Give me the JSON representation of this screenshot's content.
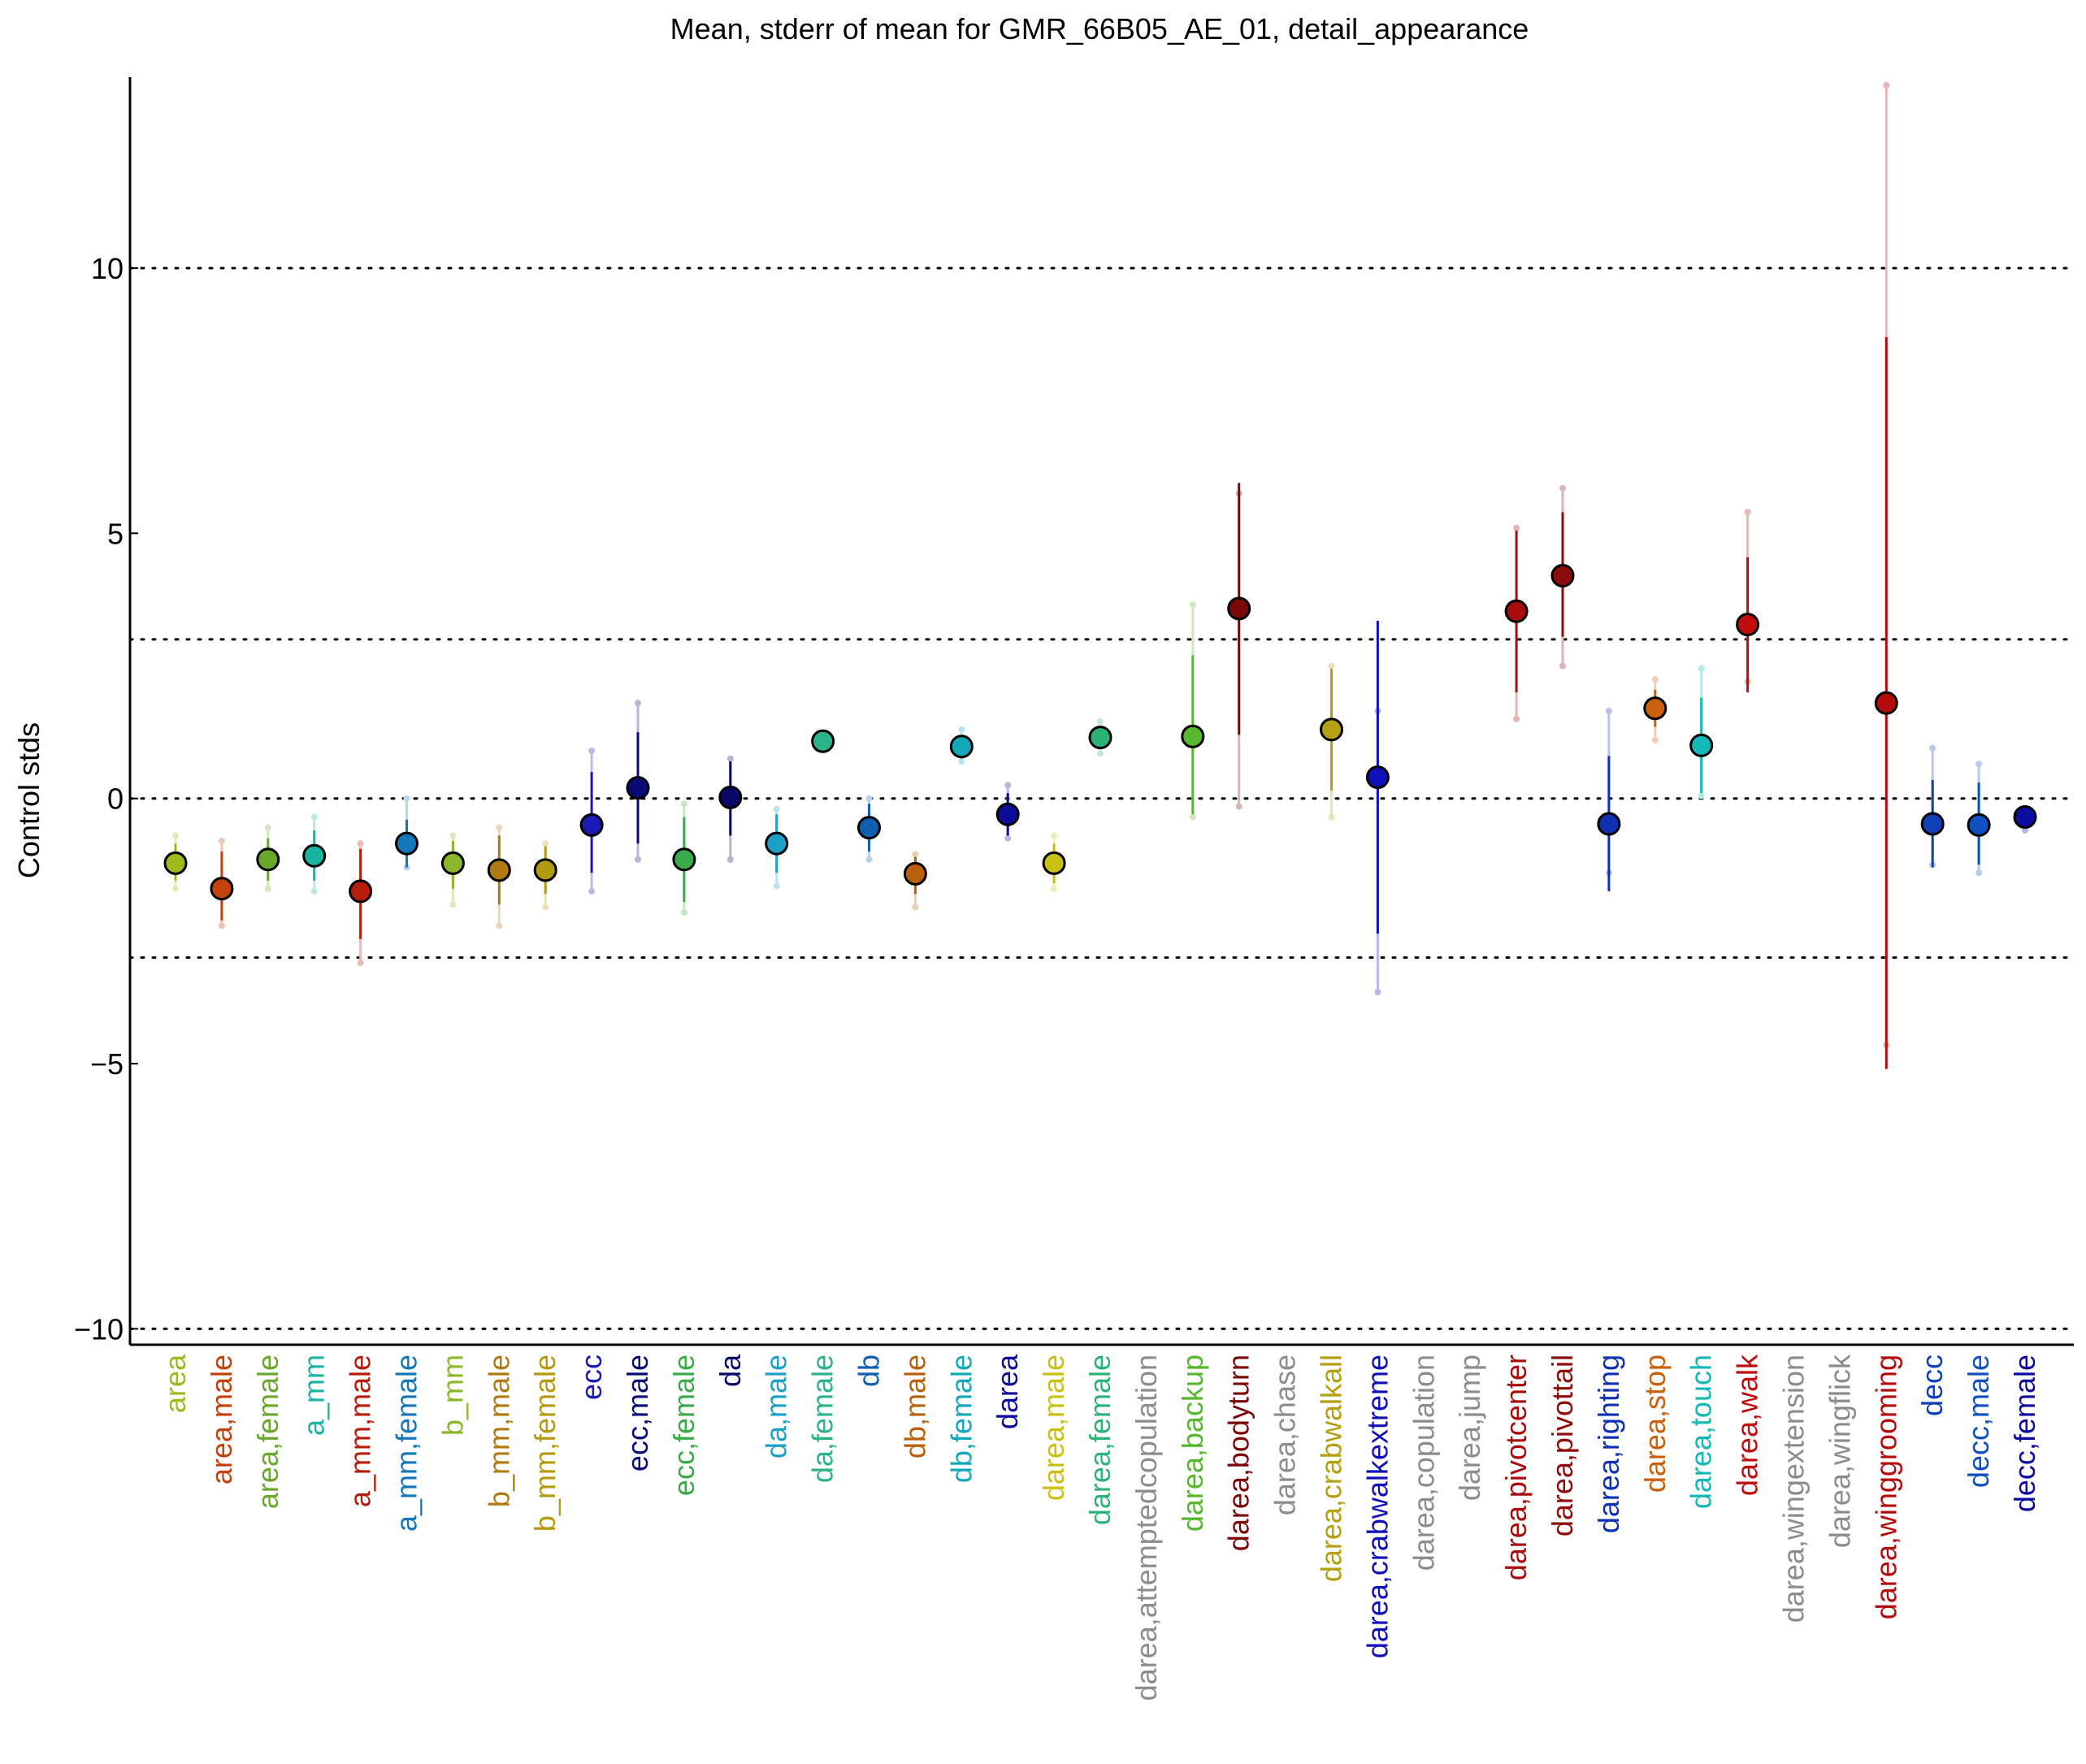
{
  "chart_data": {
    "type": "scatter",
    "title": "Mean, stderr of mean for GMR_66B05_AE_01, detail_appearance",
    "ylabel": "Control stds",
    "xlabel": "",
    "ylim": [
      -10.3,
      13.6
    ],
    "yticks": [
      -10,
      -5,
      0,
      5,
      10
    ],
    "ytick_labels": [
      "−10",
      "−5",
      "0",
      "5",
      "10"
    ],
    "reference_lines": [
      -10,
      -3,
      0,
      3,
      10
    ],
    "grid": false,
    "legend": "none",
    "points": [
      {
        "label": "area",
        "color": "#9dba1c",
        "mean": -1.22,
        "se_lo": -1.55,
        "se_hi": -0.85,
        "ext_lo": -1.7,
        "ext_hi": -0.7
      },
      {
        "label": "area,male",
        "color": "#c2410c",
        "mean": -1.7,
        "se_lo": -2.3,
        "se_hi": -1.0,
        "ext_lo": -2.4,
        "ext_hi": -0.8
      },
      {
        "label": "area,female",
        "color": "#6aa82c",
        "mean": -1.15,
        "se_lo": -1.55,
        "se_hi": -0.75,
        "ext_lo": -1.7,
        "ext_hi": -0.55
      },
      {
        "label": "a_mm",
        "color": "#19b5a0",
        "mean": -1.08,
        "se_lo": -1.55,
        "se_hi": -0.6,
        "ext_lo": -1.75,
        "ext_hi": -0.35
      },
      {
        "label": "a_mm,male",
        "color": "#b71c0c",
        "mean": -1.75,
        "se_lo": -2.65,
        "se_hi": -0.95,
        "ext_lo": -3.1,
        "ext_hi": -0.85
      },
      {
        "label": "a_mm,female",
        "color": "#1478b8",
        "mean": -0.85,
        "se_lo": -1.3,
        "se_hi": -0.4,
        "ext_lo": -1.3,
        "ext_hi": 0.0
      },
      {
        "label": "b_mm",
        "color": "#8ab82a",
        "mean": -1.22,
        "se_lo": -1.7,
        "se_hi": -0.8,
        "ext_lo": -2.0,
        "ext_hi": -0.7
      },
      {
        "label": "b_mm,male",
        "color": "#b07a10",
        "mean": -1.35,
        "se_lo": -2.0,
        "se_hi": -0.7,
        "ext_lo": -2.4,
        "ext_hi": -0.55
      },
      {
        "label": "b_mm,female",
        "color": "#b49a10",
        "mean": -1.35,
        "se_lo": -1.8,
        "se_hi": -0.9,
        "ext_lo": -2.05,
        "ext_hi": -0.85
      },
      {
        "label": "ecc",
        "color": "#1a1ab4",
        "mean": -0.5,
        "se_lo": -1.4,
        "se_hi": 0.5,
        "ext_lo": -1.75,
        "ext_hi": 0.9
      },
      {
        "label": "ecc,male",
        "color": "#0b0b78",
        "mean": 0.2,
        "se_lo": -0.85,
        "se_hi": 1.25,
        "ext_lo": -1.15,
        "ext_hi": 1.8
      },
      {
        "label": "ecc,female",
        "color": "#3aaa4a",
        "mean": -1.15,
        "se_lo": -1.95,
        "se_hi": -0.35,
        "ext_lo": -2.15,
        "ext_hi": -0.1
      },
      {
        "label": "da",
        "color": "#08086a",
        "mean": 0.02,
        "se_lo": -0.7,
        "se_hi": 0.7,
        "ext_lo": -1.15,
        "ext_hi": 0.75
      },
      {
        "label": "da,male",
        "color": "#1ca0c8",
        "mean": -0.85,
        "se_lo": -1.4,
        "se_hi": -0.3,
        "ext_lo": -1.65,
        "ext_hi": -0.2
      },
      {
        "label": "da,female",
        "color": "#2cb488",
        "mean": 1.08,
        "se_lo": 0.95,
        "se_hi": 1.2,
        "ext_lo": 0.95,
        "ext_hi": 1.2
      },
      {
        "label": "db",
        "color": "#1060b0",
        "mean": -0.55,
        "se_lo": -1.0,
        "se_hi": -0.1,
        "ext_lo": -1.15,
        "ext_hi": 0.0
      },
      {
        "label": "db,male",
        "color": "#b8600c",
        "mean": -1.42,
        "se_lo": -1.8,
        "se_hi": -1.1,
        "ext_lo": -2.05,
        "ext_hi": -1.05
      },
      {
        "label": "db,female",
        "color": "#14a8b8",
        "mean": 0.98,
        "se_lo": 0.75,
        "se_hi": 1.2,
        "ext_lo": 0.7,
        "ext_hi": 1.3
      },
      {
        "label": "darea",
        "color": "#0c0c98",
        "mean": -0.3,
        "se_lo": -0.7,
        "se_hi": 0.1,
        "ext_lo": -0.75,
        "ext_hi": 0.25
      },
      {
        "label": "darea,male",
        "color": "#c8c014",
        "mean": -1.22,
        "se_lo": -1.6,
        "se_hi": -0.85,
        "ext_lo": -1.7,
        "ext_hi": -0.7
      },
      {
        "label": "darea,female",
        "color": "#2cb478",
        "mean": 1.15,
        "se_lo": 0.95,
        "se_hi": 1.35,
        "ext_lo": 0.85,
        "ext_hi": 1.45
      },
      {
        "label": "darea,attemptedcopulation",
        "color": "#8c8c8c",
        "mean": null
      },
      {
        "label": "darea,backup",
        "color": "#56b82c",
        "mean": 1.17,
        "se_lo": -0.3,
        "se_hi": 2.7,
        "ext_lo": -0.35,
        "ext_hi": 3.65
      },
      {
        "label": "darea,bodyturn",
        "color": "#7a0808",
        "mean": 3.58,
        "se_lo": 1.2,
        "se_hi": 5.95,
        "ext_lo": -0.15,
        "ext_hi": 5.75
      },
      {
        "label": "darea,chase",
        "color": "#8c8c8c",
        "mean": null
      },
      {
        "label": "darea,crabwalkall",
        "color": "#b4a010",
        "mean": 1.3,
        "se_lo": 0.15,
        "se_hi": 2.45,
        "ext_lo": -0.35,
        "ext_hi": 2.5
      },
      {
        "label": "darea,crabwalkextreme",
        "color": "#1010b8",
        "mean": 0.4,
        "se_lo": -2.55,
        "se_hi": 3.35,
        "ext_lo": -3.65,
        "ext_hi": 1.65
      },
      {
        "label": "darea,copulation",
        "color": "#8c8c8c",
        "mean": null
      },
      {
        "label": "darea,jump",
        "color": "#8c8c8c",
        "mean": null
      },
      {
        "label": "darea,pivotcenter",
        "color": "#a80c0c",
        "mean": 3.53,
        "se_lo": 2.0,
        "se_hi": 5.05,
        "ext_lo": 1.5,
        "ext_hi": 5.1
      },
      {
        "label": "darea,pivottail",
        "color": "#8c0c0c",
        "mean": 4.2,
        "se_lo": 3.05,
        "se_hi": 5.4,
        "ext_lo": 2.5,
        "ext_hi": 5.85
      },
      {
        "label": "darea,righting",
        "color": "#1030b4",
        "mean": -0.48,
        "se_lo": -1.75,
        "se_hi": 0.8,
        "ext_lo": -1.4,
        "ext_hi": 1.65
      },
      {
        "label": "darea,stop",
        "color": "#c8600c",
        "mean": 1.7,
        "se_lo": 1.35,
        "se_hi": 2.05,
        "ext_lo": 1.1,
        "ext_hi": 2.25
      },
      {
        "label": "darea,touch",
        "color": "#14b8b8",
        "mean": 1.0,
        "se_lo": 0.1,
        "se_hi": 1.9,
        "ext_lo": 0.05,
        "ext_hi": 2.45
      },
      {
        "label": "darea,walk",
        "color": "#c00c0c",
        "mean": 3.28,
        "se_lo": 2.0,
        "se_hi": 4.55,
        "ext_lo": 2.2,
        "ext_hi": 5.4
      },
      {
        "label": "darea,wingextension",
        "color": "#8c8c8c",
        "mean": null
      },
      {
        "label": "darea,wingflick",
        "color": "#8c8c8c",
        "mean": null
      },
      {
        "label": "darea,winggrooming",
        "color": "#b40c0c",
        "mean": 1.8,
        "se_lo": -5.1,
        "se_hi": 8.7,
        "ext_lo": -4.65,
        "ext_hi": 13.45
      },
      {
        "label": "decc",
        "color": "#1040b8",
        "mean": -0.48,
        "se_lo": -1.3,
        "se_hi": 0.35,
        "ext_lo": -1.25,
        "ext_hi": 0.95
      },
      {
        "label": "decc,male",
        "color": "#1050c0",
        "mean": -0.5,
        "se_lo": -1.25,
        "se_hi": 0.3,
        "ext_lo": -1.4,
        "ext_hi": 0.65
      },
      {
        "label": "decc,female",
        "color": "#0c0ca0",
        "mean": -0.35,
        "se_lo": -0.55,
        "se_hi": -0.2,
        "ext_lo": -0.6,
        "ext_hi": -0.2
      }
    ]
  }
}
